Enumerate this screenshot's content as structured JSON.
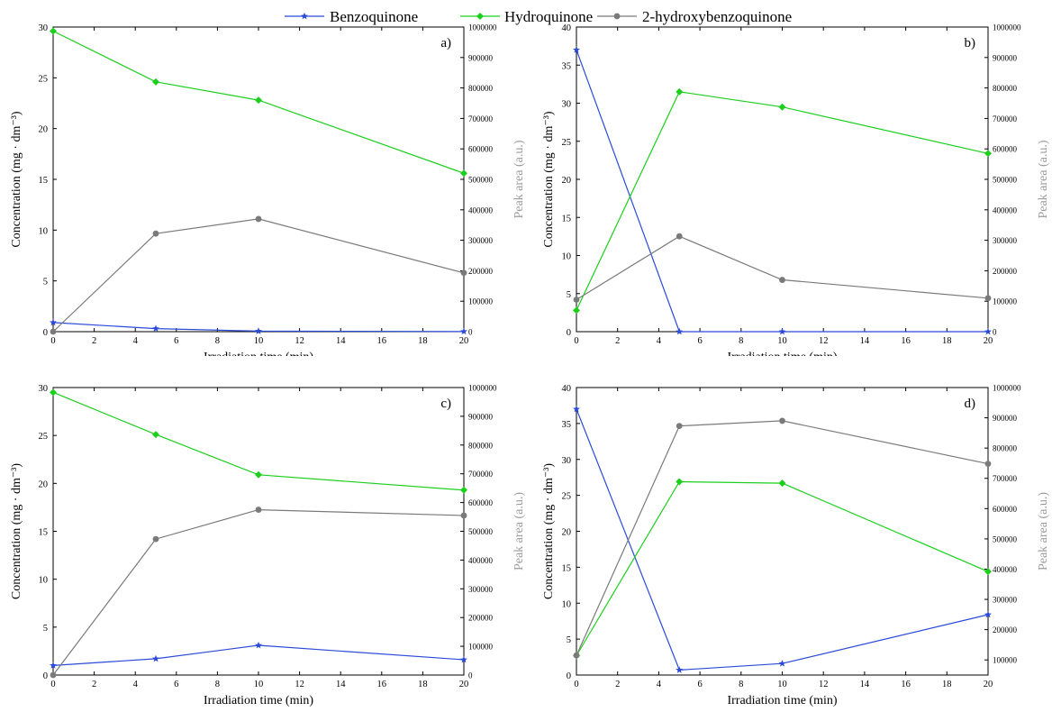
{
  "legend": [
    {
      "name": "Benzoquinone",
      "color": "#2b4bd8",
      "marker": "star"
    },
    {
      "name": "Hydroquinone",
      "color": "#1ccf1c",
      "marker": "diamond"
    },
    {
      "name": "2-hydroxybenzoquinone",
      "color": "#7a7a7a",
      "marker": "circle"
    }
  ],
  "chart_data": [
    {
      "type": "line",
      "panel_label": "a)",
      "xlabel": "Irradiation time (min)",
      "ylabel": "Concentration (mg · dm⁻³)",
      "y2label": "Peak area (a.u.)",
      "xlim": [
        0,
        20
      ],
      "xticks": [
        0,
        2,
        4,
        6,
        8,
        10,
        12,
        14,
        16,
        18,
        20
      ],
      "ylim": [
        0,
        30
      ],
      "yticks": [
        0,
        5,
        10,
        15,
        20,
        25,
        30
      ],
      "y2lim": [
        0,
        1000000
      ],
      "y2ticks": [
        0,
        100000,
        200000,
        300000,
        400000,
        500000,
        600000,
        700000,
        800000,
        900000,
        1000000
      ],
      "series": [
        {
          "name": "Benzoquinone",
          "axis": "left",
          "x": [
            0,
            5,
            10,
            20
          ],
          "values": [
            0.9,
            0.3,
            0.05,
            0.02
          ]
        },
        {
          "name": "Hydroquinone",
          "axis": "left",
          "x": [
            0,
            5,
            10,
            20
          ],
          "values": [
            29.6,
            24.6,
            22.8,
            15.6
          ]
        },
        {
          "name": "2-hydroxybenzoquinone",
          "axis": "right",
          "x": [
            0,
            5,
            10,
            20
          ],
          "values": [
            0,
            322000,
            370000,
            193000
          ]
        }
      ]
    },
    {
      "type": "line",
      "panel_label": "b)",
      "xlabel": "Irradiation time (min)",
      "ylabel": "Concentration (mg · dm⁻³)",
      "y2label": "Peak area (a.u.)",
      "xlim": [
        0,
        20
      ],
      "xticks": [
        0,
        2,
        4,
        6,
        8,
        10,
        12,
        14,
        16,
        18,
        20
      ],
      "ylim": [
        0,
        40
      ],
      "yticks": [
        0,
        5,
        10,
        15,
        20,
        25,
        30,
        35,
        40
      ],
      "y2lim": [
        0,
        1000000
      ],
      "y2ticks": [
        0,
        100000,
        200000,
        300000,
        400000,
        500000,
        600000,
        700000,
        800000,
        900000,
        1000000
      ],
      "series": [
        {
          "name": "Benzoquinone",
          "axis": "left",
          "x": [
            0,
            5,
            10,
            20
          ],
          "values": [
            37.0,
            0,
            0,
            0
          ]
        },
        {
          "name": "Hydroquinone",
          "axis": "left",
          "x": [
            0,
            5,
            10,
            20
          ],
          "values": [
            2.8,
            31.5,
            29.5,
            23.4
          ]
        },
        {
          "name": "2-hydroxybenzoquinone",
          "axis": "right",
          "x": [
            0,
            5,
            10,
            20
          ],
          "values": [
            105000,
            313000,
            170000,
            110000
          ]
        }
      ]
    },
    {
      "type": "line",
      "panel_label": "c)",
      "xlabel": "Irradiation time (min)",
      "ylabel": "Concentration (mg · dm⁻³)",
      "y2label": "Peak area (a.u.)",
      "xlim": [
        0,
        20
      ],
      "xticks": [
        0,
        2,
        4,
        6,
        8,
        10,
        12,
        14,
        16,
        18,
        20
      ],
      "ylim": [
        0,
        30
      ],
      "yticks": [
        0,
        5,
        10,
        15,
        20,
        25,
        30
      ],
      "y2lim": [
        0,
        1000000
      ],
      "y2ticks": [
        0,
        100000,
        200000,
        300000,
        400000,
        500000,
        600000,
        700000,
        800000,
        900000,
        1000000
      ],
      "series": [
        {
          "name": "Benzoquinone",
          "axis": "left",
          "x": [
            0,
            5,
            10,
            20
          ],
          "values": [
            1.0,
            1.7,
            3.1,
            1.6
          ]
        },
        {
          "name": "Hydroquinone",
          "axis": "left",
          "x": [
            0,
            5,
            10,
            20
          ],
          "values": [
            29.5,
            25.1,
            20.9,
            19.3
          ]
        },
        {
          "name": "2-hydroxybenzoquinone",
          "axis": "right",
          "x": [
            0,
            5,
            10,
            20
          ],
          "values": [
            0,
            473000,
            575000,
            555000
          ]
        }
      ]
    },
    {
      "type": "line",
      "panel_label": "d)",
      "xlabel": "Irradiation time (min)",
      "ylabel": "Concentration (mg · dm⁻³)",
      "y2label": "Peak area (a.u.)",
      "xlim": [
        0,
        20
      ],
      "xticks": [
        0,
        2,
        4,
        6,
        8,
        10,
        12,
        14,
        16,
        18,
        20
      ],
      "ylim": [
        0,
        40
      ],
      "yticks": [
        0,
        5,
        10,
        15,
        20,
        25,
        30,
        35,
        40
      ],
      "y2lim": [
        50000,
        1000000
      ],
      "y2ticks": [
        100000,
        200000,
        300000,
        400000,
        500000,
        600000,
        700000,
        800000,
        900000,
        1000000
      ],
      "series": [
        {
          "name": "Benzoquinone",
          "axis": "left",
          "x": [
            0,
            5,
            10,
            20
          ],
          "values": [
            37.0,
            0.7,
            1.6,
            8.4
          ]
        },
        {
          "name": "Hydroquinone",
          "axis": "left",
          "x": [
            0,
            5,
            10,
            20
          ],
          "values": [
            2.7,
            26.9,
            26.7,
            14.4
          ]
        },
        {
          "name": "2-hydroxybenzoquinone",
          "axis": "right",
          "x": [
            0,
            5,
            10,
            20
          ],
          "values": [
            115000,
            873000,
            890000,
            748000
          ]
        }
      ]
    }
  ]
}
